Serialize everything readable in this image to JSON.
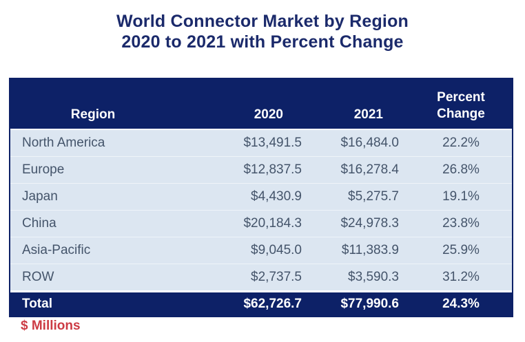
{
  "title": {
    "line1": "World Connector Market by Region",
    "line2": "2020 to 2021 with Percent Change"
  },
  "table": {
    "columns": [
      {
        "label": "Region"
      },
      {
        "label": "2020"
      },
      {
        "label": "2021"
      },
      {
        "label": "Percent\nChange"
      }
    ],
    "rows": [
      {
        "region": "North America",
        "y2020": "$13,491.5",
        "y2021": "$16,484.0",
        "pct": "22.2%"
      },
      {
        "region": "Europe",
        "y2020": "$12,837.5",
        "y2021": "$16,278.4",
        "pct": "26.8%"
      },
      {
        "region": "Japan",
        "y2020": "$4,430.9",
        "y2021": "$5,275.7",
        "pct": "19.1%"
      },
      {
        "region": "China",
        "y2020": "$20,184.3",
        "y2021": "$24,978.3",
        "pct": "23.8%"
      },
      {
        "region": "Asia-Pacific",
        "y2020": "$9,045.0",
        "y2021": "$11,383.9",
        "pct": "25.9%"
      },
      {
        "region": "ROW",
        "y2020": "$2,737.5",
        "y2021": "$3,590.3",
        "pct": "31.2%"
      }
    ],
    "total": {
      "region": "Total",
      "y2020": "$62,726.7",
      "y2021": "$77,990.6",
      "pct": "24.3%"
    }
  },
  "footnote": "$ Millions",
  "colors": {
    "header_navy": "#0d2167",
    "row_background": "#dce6f1",
    "body_text": "#44546a",
    "title_navy": "#1b2a6b",
    "footnote_red": "#cc3b44"
  },
  "chart_data": {
    "type": "table",
    "title": "World Connector Market by Region 2020 to 2021 with Percent Change",
    "columns": [
      "Region",
      "2020",
      "2021",
      "Percent Change"
    ],
    "categories": [
      "North America",
      "Europe",
      "Japan",
      "China",
      "Asia-Pacific",
      "ROW",
      "Total"
    ],
    "series": [
      {
        "name": "2020",
        "values": [
          13491.5,
          12837.5,
          4430.9,
          20184.3,
          9045.0,
          2737.5,
          62726.7
        ]
      },
      {
        "name": "2021",
        "values": [
          16484.0,
          16278.4,
          5275.7,
          24978.3,
          11383.9,
          3590.3,
          77990.6
        ]
      },
      {
        "name": "Percent Change",
        "values": [
          22.2,
          26.8,
          19.1,
          23.8,
          25.9,
          31.2,
          24.3
        ]
      }
    ],
    "units": "$ Millions"
  }
}
